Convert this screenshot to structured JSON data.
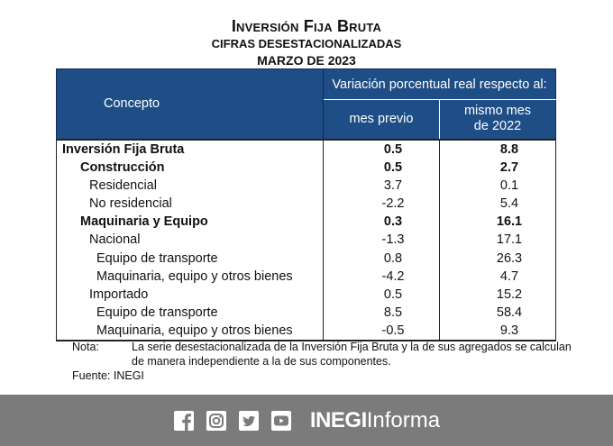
{
  "header": {
    "title": "Inversión Fija Bruta",
    "subtitle": "CIFRAS DESESTACIONALIZADAS",
    "period": "MARZO DE 2023"
  },
  "table": {
    "col_concept": "Concepto",
    "col_group": "Variación porcentual real respecto al:",
    "col_prev": "mes previo",
    "col_same_line1": "mismo mes",
    "col_same_line2": "de 2022",
    "rows": [
      {
        "concepto": "Inversión Fija Bruta",
        "mes_previo": "0.5",
        "mismo_mes": "8.8"
      },
      {
        "concepto": "Construcción",
        "mes_previo": "0.5",
        "mismo_mes": "2.7"
      },
      {
        "concepto": "Residencial",
        "mes_previo": "3.7",
        "mismo_mes": "0.1"
      },
      {
        "concepto": "No residencial",
        "mes_previo": "-2.2",
        "mismo_mes": "5.4"
      },
      {
        "concepto": "Maquinaria y Equipo",
        "mes_previo": "0.3",
        "mismo_mes": "16.1"
      },
      {
        "concepto": "Nacional",
        "mes_previo": "-1.3",
        "mismo_mes": "17.1"
      },
      {
        "concepto": "Equipo de transporte",
        "mes_previo": "0.8",
        "mismo_mes": "26.3"
      },
      {
        "concepto": "Maquinaria, equipo y otros bienes",
        "mes_previo": "-4.2",
        "mismo_mes": "4.7"
      },
      {
        "concepto": "Importado",
        "mes_previo": "0.5",
        "mismo_mes": "15.2"
      },
      {
        "concepto": "Equipo de transporte",
        "mes_previo": "8.5",
        "mismo_mes": "58.4"
      },
      {
        "concepto": "Maquinaria, equipo y otros bienes",
        "mes_previo": "-0.5",
        "mismo_mes": "9.3"
      }
    ]
  },
  "notes": {
    "note_label": "Nota:",
    "note_text": "La serie desestacionalizada de la Inversión Fija Bruta y la de sus agregados se calculan de manera independiente a la de sus componentes.",
    "source": "Fuente: INEGI"
  },
  "footer": {
    "brand_bold": "INEGI",
    "brand_light": "Informa",
    "background": "#7b7b7b",
    "icons": [
      "facebook-icon",
      "instagram-icon",
      "twitter-icon",
      "youtube-icon"
    ]
  },
  "colors": {
    "header_bg": "#1f4e86"
  }
}
